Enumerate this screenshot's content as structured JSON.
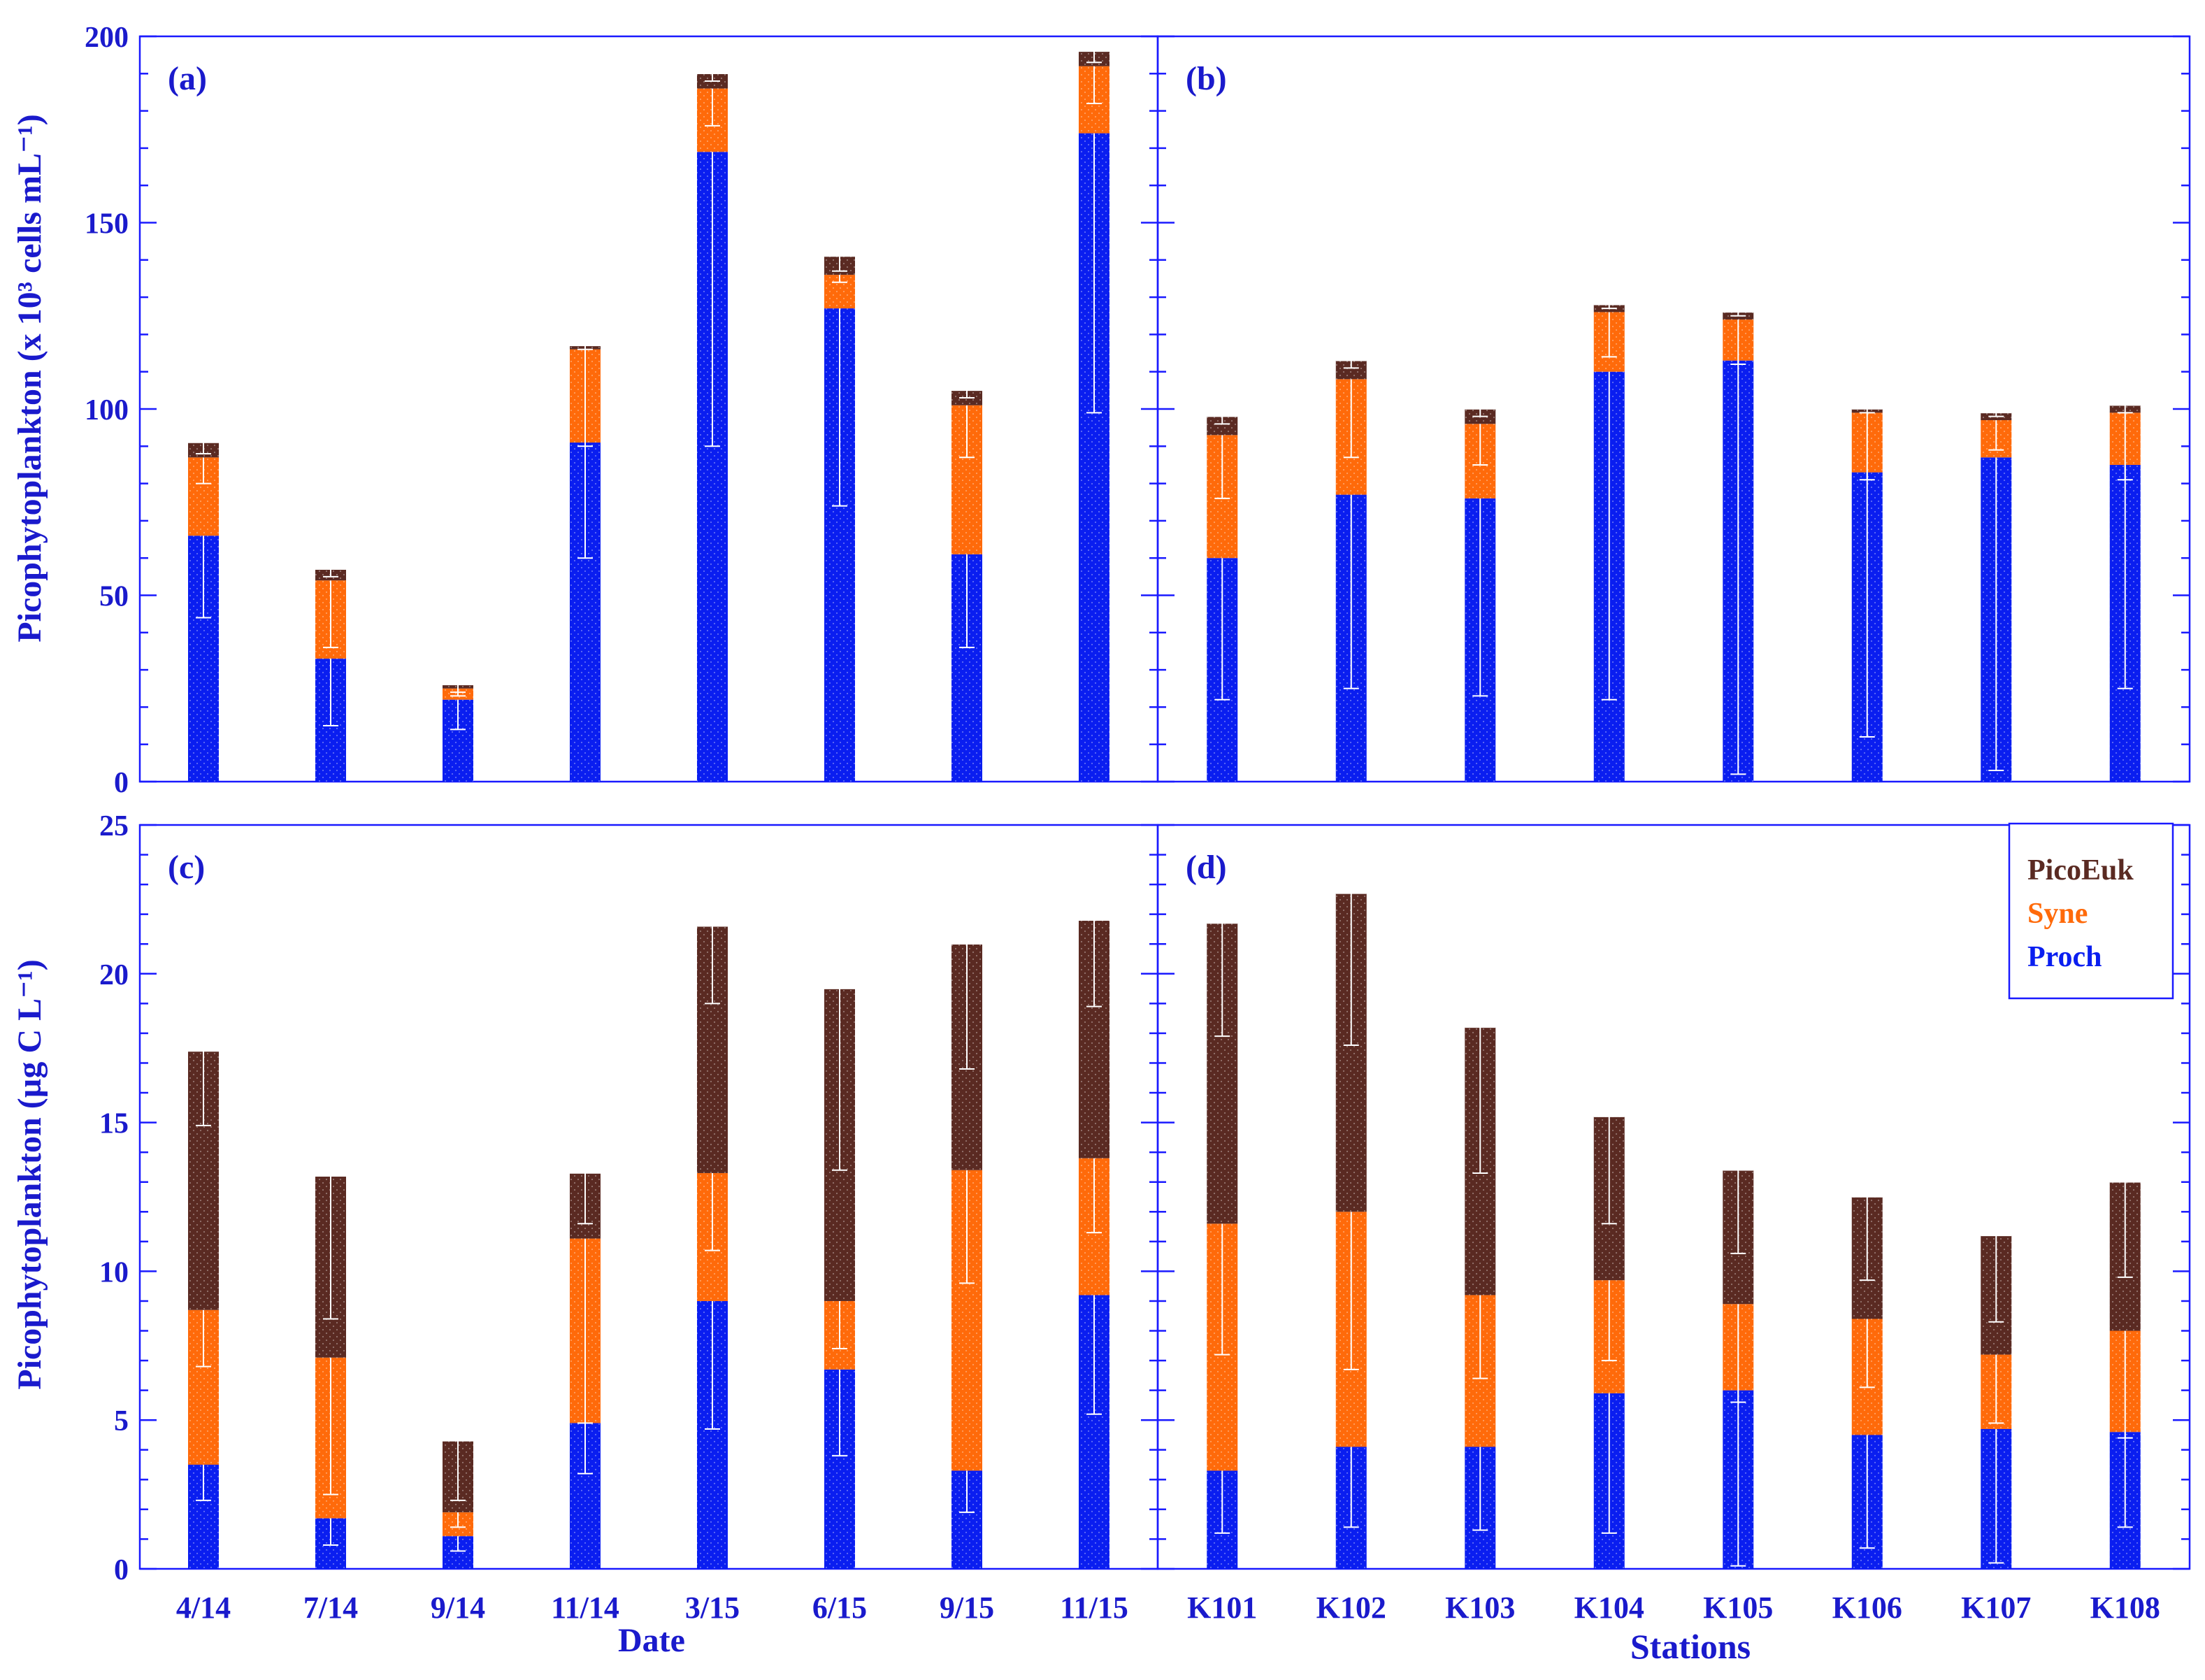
{
  "colors": {
    "proch": "#0a1ef0",
    "syne": "#ff6a0a",
    "picoeuk": "#5a2a22",
    "axis": "#1a1aff",
    "label": "#1a1acc",
    "errorbar": "#ffffff"
  },
  "legend": {
    "entries": [
      {
        "name": "PicoEuk",
        "color": "#5a2a22"
      },
      {
        "name": "Syne",
        "color": "#ff6a0a"
      },
      {
        "name": "Proch",
        "color": "#0a1ef0"
      }
    ]
  },
  "chart_data": [
    {
      "panel": "(a)",
      "type": "bar",
      "stacked": true,
      "ylabel": "Picophytoplankton (x 10³ cells mL⁻¹)",
      "xlabel": "",
      "ylim": [
        0,
        200
      ],
      "yticks": [
        0,
        50,
        100,
        150,
        200
      ],
      "categories": [
        "4/14",
        "7/14",
        "9/14",
        "11/14",
        "3/15",
        "6/15",
        "9/15",
        "11/15"
      ],
      "series": [
        {
          "name": "Proch",
          "values": [
            66,
            33,
            22,
            91,
            169,
            127,
            61,
            174
          ],
          "err_low": [
            44,
            15,
            14,
            60,
            90,
            74,
            36,
            99
          ]
        },
        {
          "name": "Syne",
          "values": [
            21,
            21,
            3,
            25,
            17,
            9,
            40,
            18
          ],
          "err_low": [
            80,
            36,
            23,
            90,
            176,
            134,
            87,
            182
          ]
        },
        {
          "name": "PicoEuk",
          "values": [
            4,
            3,
            1,
            1,
            4,
            5,
            4,
            4
          ],
          "err_low": [
            88,
            55,
            24,
            116,
            188,
            137,
            103,
            193
          ]
        }
      ]
    },
    {
      "panel": "(b)",
      "type": "bar",
      "stacked": true,
      "ylabel": "",
      "xlabel": "",
      "ylim": [
        0,
        200
      ],
      "yticks": [
        0,
        50,
        100,
        150,
        200
      ],
      "categories": [
        "K101",
        "K102",
        "K103",
        "K104",
        "K105",
        "K106",
        "K107",
        "K108"
      ],
      "series": [
        {
          "name": "Proch",
          "values": [
            60,
            77,
            76,
            110,
            113,
            83,
            87,
            85
          ],
          "err_low": [
            22,
            25,
            23,
            22,
            2,
            12,
            3,
            25
          ]
        },
        {
          "name": "Syne",
          "values": [
            33,
            31,
            20,
            16,
            11,
            16,
            10,
            14
          ],
          "err_low": [
            76,
            87,
            85,
            114,
            112,
            81,
            89,
            81
          ]
        },
        {
          "name": "PicoEuk",
          "values": [
            5,
            5,
            4,
            2,
            2,
            1,
            2,
            2
          ],
          "err_low": [
            96,
            111,
            98,
            127,
            125,
            99,
            98,
            99
          ]
        }
      ]
    },
    {
      "panel": "(c)",
      "type": "bar",
      "stacked": true,
      "ylabel": "Picophytoplankton (µg C L⁻¹)",
      "xlabel": "Date",
      "ylim": [
        0,
        25
      ],
      "yticks": [
        0,
        5,
        10,
        15,
        20,
        25
      ],
      "categories": [
        "4/14",
        "7/14",
        "9/14",
        "11/14",
        "3/15",
        "6/15",
        "9/15",
        "11/15"
      ],
      "series": [
        {
          "name": "Proch",
          "values": [
            3.5,
            1.7,
            1.1,
            4.9,
            9.0,
            6.7,
            3.3,
            9.2
          ],
          "err_low": [
            2.3,
            0.8,
            0.6,
            3.2,
            4.7,
            3.8,
            1.9,
            5.2
          ]
        },
        {
          "name": "Syne",
          "values": [
            5.2,
            5.4,
            0.8,
            6.2,
            4.3,
            2.3,
            10.1,
            4.6
          ],
          "err_low": [
            6.8,
            2.5,
            1.4,
            4.9,
            10.7,
            7.4,
            9.6,
            11.3
          ]
        },
        {
          "name": "PicoEuk",
          "values": [
            8.7,
            6.1,
            2.4,
            2.2,
            8.3,
            10.5,
            7.6,
            8.0
          ],
          "err_low": [
            14.9,
            8.4,
            2.3,
            11.6,
            19.0,
            13.4,
            16.8,
            18.9
          ]
        }
      ]
    },
    {
      "panel": "(d)",
      "type": "bar",
      "stacked": true,
      "ylabel": "",
      "xlabel": "Stations",
      "ylim": [
        0,
        25
      ],
      "yticks": [
        0,
        5,
        10,
        15,
        20,
        25
      ],
      "categories": [
        "K101",
        "K102",
        "K103",
        "K104",
        "K105",
        "K106",
        "K107",
        "K108"
      ],
      "series": [
        {
          "name": "Proch",
          "values": [
            3.3,
            4.1,
            4.1,
            5.9,
            6.0,
            4.5,
            4.7,
            4.6
          ],
          "err_low": [
            1.2,
            1.4,
            1.3,
            1.2,
            0.1,
            0.7,
            0.2,
            1.4
          ]
        },
        {
          "name": "Syne",
          "values": [
            8.3,
            7.9,
            5.1,
            3.8,
            2.9,
            3.9,
            2.5,
            3.4
          ],
          "err_low": [
            7.2,
            6.7,
            6.4,
            7.0,
            5.6,
            6.1,
            4.9,
            4.4
          ]
        },
        {
          "name": "PicoEuk",
          "values": [
            10.1,
            10.7,
            9.0,
            5.5,
            4.5,
            4.1,
            4.0,
            5.0
          ],
          "err_low": [
            17.9,
            17.6,
            13.3,
            11.6,
            10.6,
            9.7,
            8.3,
            9.8
          ]
        }
      ]
    }
  ]
}
